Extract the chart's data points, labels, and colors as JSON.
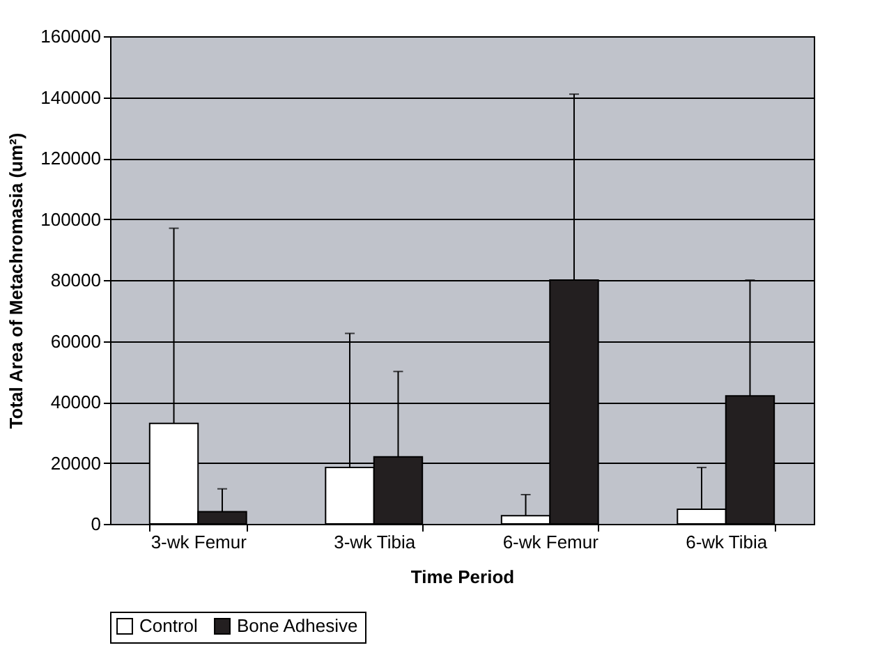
{
  "chart_data": {
    "type": "bar",
    "xlabel": "Time Period",
    "ylabel": "Total Area of Metachromasia (um²)",
    "categories": [
      "3-wk Femur",
      "3-wk Tibia",
      "6-wk Femur",
      "6-wk Tibia"
    ],
    "series": [
      {
        "name": "Control",
        "color": "#ffffff",
        "values": [
          33000,
          18500,
          2700,
          4800
        ],
        "errors": [
          [
            33000,
            97000
          ],
          [
            18500,
            62500
          ],
          [
            2700,
            9600
          ],
          [
            4800,
            18500
          ]
        ]
      },
      {
        "name": "Bone Adhesive",
        "color": "#231f20",
        "values": [
          4000,
          22000,
          80000,
          42000
        ],
        "errors": [
          [
            4000,
            11500
          ],
          [
            22000,
            50000
          ],
          [
            80000,
            141000
          ],
          [
            42000,
            80000
          ]
        ]
      }
    ],
    "ylim": [
      0,
      160000
    ],
    "yticks": [
      0,
      20000,
      40000,
      60000,
      80000,
      100000,
      120000,
      140000,
      160000
    ],
    "grid": "y",
    "legend": "bottom"
  }
}
